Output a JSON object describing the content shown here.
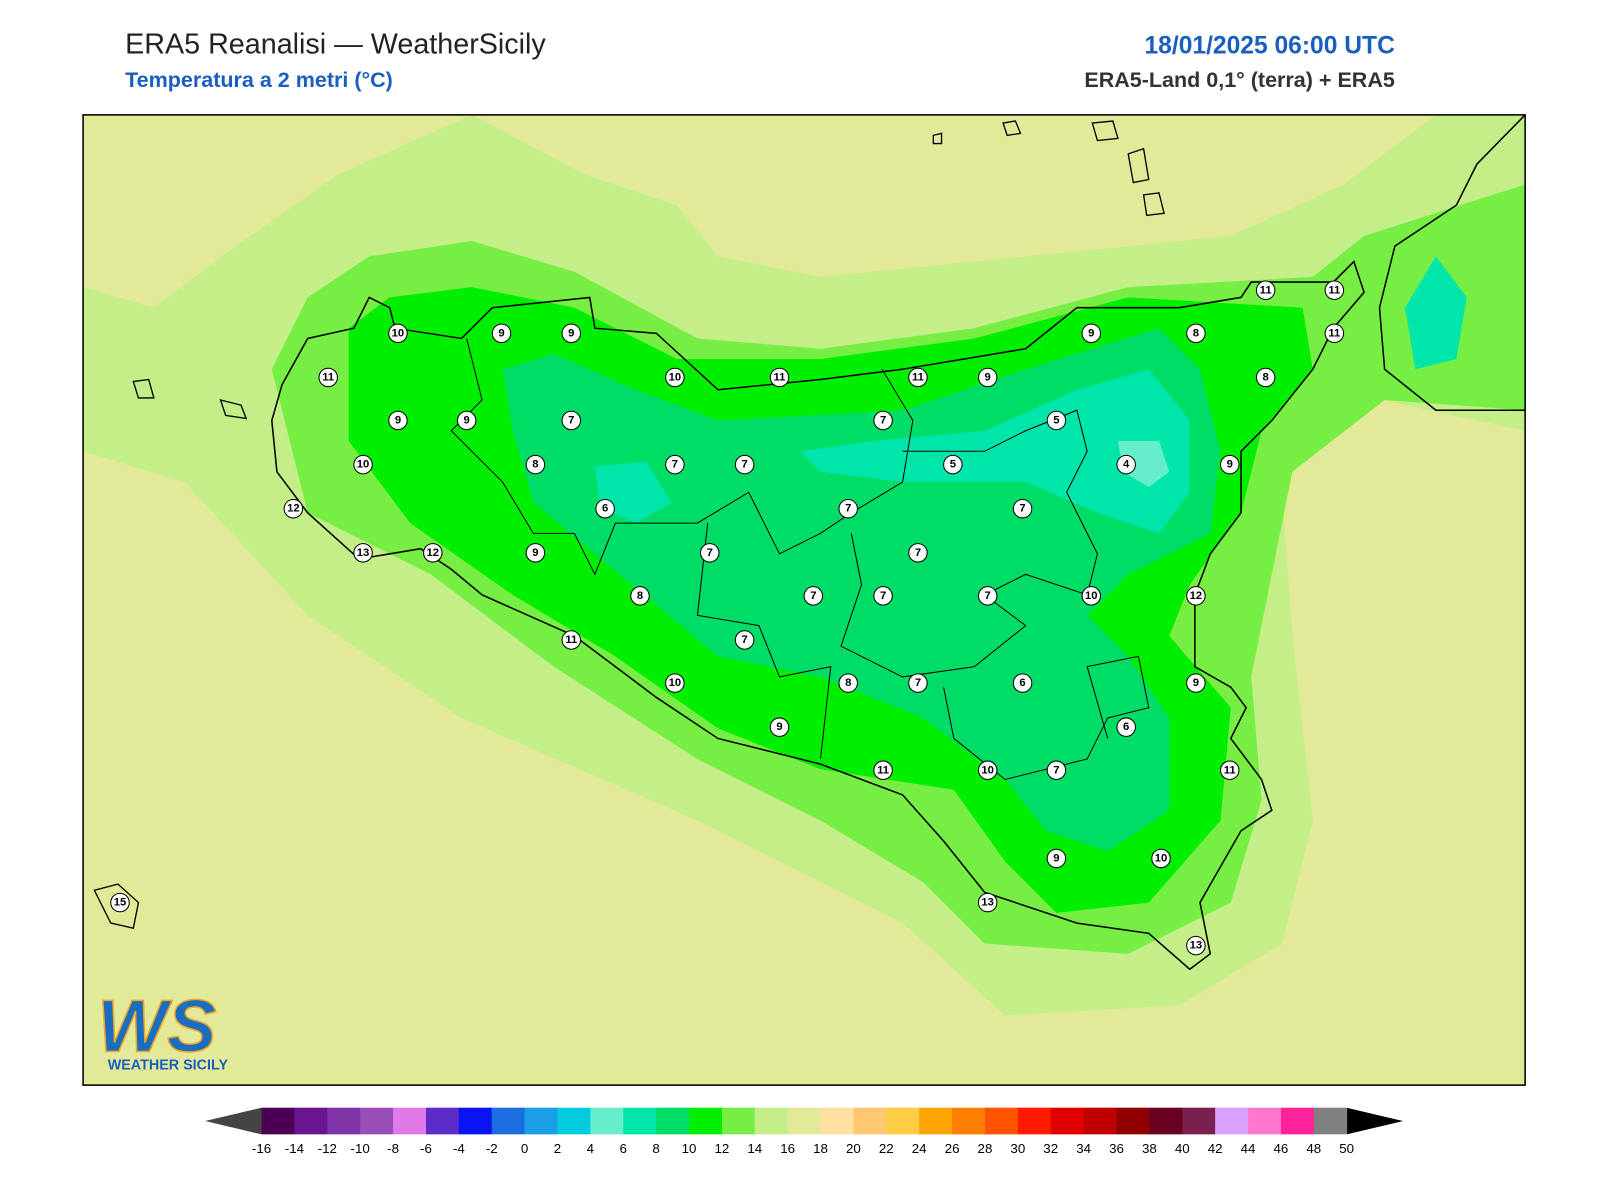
{
  "header": {
    "title": "ERA5 Reanalisi — WeatherSicily",
    "subtitle": "Temperatura a 2 metri (°C)",
    "datetime": "18/01/2025 06:00 UTC",
    "source": "ERA5-Land 0,1° (terra) + ERA5"
  },
  "stations": [
    10,
    9,
    9,
    11,
    10,
    11,
    11,
    9,
    9,
    8,
    11,
    11,
    11,
    8,
    9,
    9,
    7,
    7,
    5,
    10,
    8,
    7,
    7,
    5,
    4,
    9,
    12,
    6,
    7,
    7,
    13,
    12,
    9,
    7,
    7,
    8,
    7,
    7,
    7,
    10,
    12,
    11,
    7,
    10,
    8,
    7,
    6,
    9,
    9,
    6,
    11,
    10,
    7,
    11,
    9,
    10,
    15,
    13,
    13
  ],
  "colorbar": {
    "ticks": [
      -16,
      -14,
      -12,
      -10,
      -8,
      -6,
      -4,
      -2,
      0,
      2,
      4,
      6,
      8,
      10,
      12,
      14,
      16,
      18,
      20,
      22,
      24,
      26,
      28,
      30,
      32,
      34,
      36,
      38,
      40,
      42,
      44,
      46,
      48,
      50
    ],
    "colors": [
      "#4b0055",
      "#6a1590",
      "#7f35a8",
      "#9a4fb8",
      "#e07ae8",
      "#5b2cc8",
      "#0a14f0",
      "#1a6ee0",
      "#1a9ee8",
      "#00ccdd",
      "#66eecc",
      "#00e6aa",
      "#00dd66",
      "#00ee00",
      "#77ee44",
      "#c4ee88",
      "#e0ea99",
      "#ffe0a0",
      "#ffc870",
      "#ffcc44",
      "#ffa500",
      "#ff8000",
      "#ff5500",
      "#ff1a00",
      "#e00000",
      "#c00000",
      "#900000",
      "#6a0020",
      "#7a2050",
      "#d9a0ff",
      "#ff77cc",
      "#ff2299",
      "#808080"
    ],
    "under_color": "#444444",
    "over_color": "#000000"
  },
  "logo": {
    "mark": "WS",
    "name": "WEATHER SICILY"
  }
}
